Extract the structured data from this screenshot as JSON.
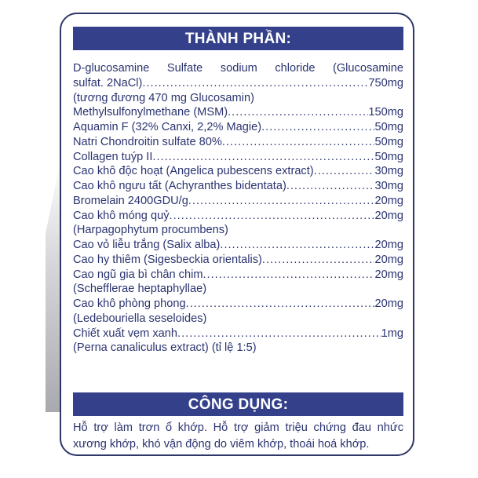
{
  "ingredients": {
    "title": "THÀNH PHẦN:",
    "intro_line": "D-glucosamine Sulfate sodium chloride (Glucosamine",
    "items": [
      {
        "name": "sulfat. 2NaCl)",
        "amount": "750mg"
      },
      {
        "note": "(tương đương 470 mg Glucosamin)"
      },
      {
        "name": "Methylsulfonylmethane (MSM)",
        "amount": "150mg"
      },
      {
        "name": "Aquamin F (32% Canxi, 2,2% Magie)",
        "amount": "50mg"
      },
      {
        "name": "Natri Chondroitin sulfate 80%",
        "amount": "50mg"
      },
      {
        "name": "Collagen tuýp II",
        "amount": "50mg"
      },
      {
        "name": "Cao khô độc hoạt (Angelica pubescens extract)",
        "amount": "30mg"
      },
      {
        "name": "Cao khô ngưu tất (Achyranthes bidentata)",
        "amount": "30mg"
      },
      {
        "name": "Bromelain 2400GDU/g",
        "amount": "20mg"
      },
      {
        "name": "Cao khô móng quỷ",
        "amount": "20mg"
      },
      {
        "note": "(Harpagophytum procumbens)"
      },
      {
        "name": "Cao vỏ liễu trắng (Salix alba)",
        "amount": "20mg"
      },
      {
        "name": "Cao hy thiêm (Sigesbeckia orientalis)",
        "amount": "20mg"
      },
      {
        "name": "Cao ngũ gia bì chân chim",
        "amount": "20mg"
      },
      {
        "note": "(Schefflerae heptaphyllae)"
      },
      {
        "name": "Cao khô phòng phong",
        "amount": "20mg"
      },
      {
        "note": "(Ledebouriella seseloides)"
      },
      {
        "name": "Chiết xuất vẹm xanh",
        "amount": "1mg"
      },
      {
        "note": "(Perna canaliculus extract) (tỉ lệ 1:5)"
      }
    ]
  },
  "usage": {
    "title": "CÔNG DỤNG:",
    "lines": [
      "Hỗ trợ làm trơn ổ khớp. Hỗ trợ giảm triệu chứng đau nhức",
      "xương khớp, khó vận động do viêm khớp, thoái hoá khớp."
    ]
  },
  "colors": {
    "header_bg": "#34418a",
    "text": "#2b3470",
    "border": "#2e3668"
  }
}
